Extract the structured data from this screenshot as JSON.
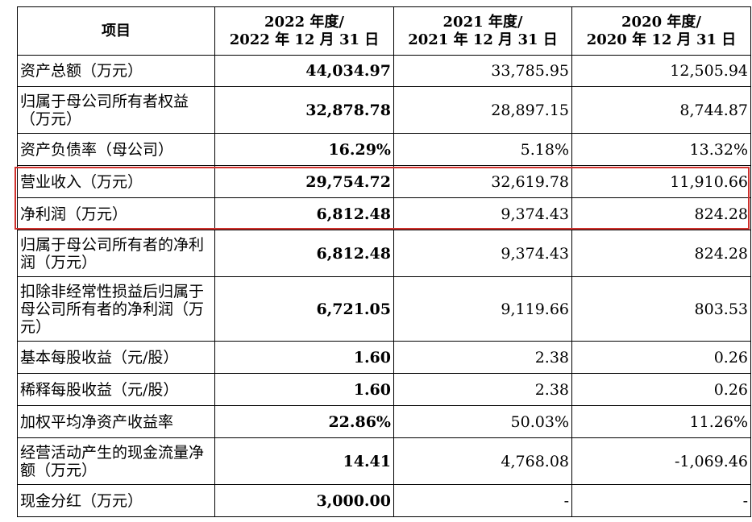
{
  "table": {
    "headers": {
      "item": "项目",
      "col2022_line1": "2022 年度/",
      "col2022_line2": "2022 年 12 月 31 日",
      "col2021_line1": "2021 年度/",
      "col2021_line2": "2021 年 12 月 31 日",
      "col2020_line1": "2020 年度/",
      "col2020_line2": "2020 年 12 月 31 日"
    },
    "rows": [
      {
        "label": "资产总额（万元）",
        "v2022": "44,034.97",
        "v2021": "33,785.95",
        "v2020": "12,505.94"
      },
      {
        "label": "归属于母公司所有者权益（万元）",
        "v2022": "32,878.78",
        "v2021": "28,897.15",
        "v2020": "8,744.87"
      },
      {
        "label": "资产负债率（母公司）",
        "v2022": "16.29%",
        "v2021": "5.18%",
        "v2020": "13.32%"
      },
      {
        "label": "营业收入（万元）",
        "v2022": "29,754.72",
        "v2021": "32,619.78",
        "v2020": "11,910.66"
      },
      {
        "label": "净利润（万元）",
        "v2022": "6,812.48",
        "v2021": "9,374.43",
        "v2020": "824.28"
      },
      {
        "label": "归属于母公司所有者的净利润（万元）",
        "v2022": "6,812.48",
        "v2021": "9,374.43",
        "v2020": "824.28"
      },
      {
        "label": "扣除非经常性损益后归属于母公司所有者的净利润（万元）",
        "v2022": "6,721.05",
        "v2021": "9,119.66",
        "v2020": "803.53"
      },
      {
        "label": "基本每股收益（元/股）",
        "v2022": "1.60",
        "v2021": "2.38",
        "v2020": "0.26"
      },
      {
        "label": "稀释每股收益（元/股）",
        "v2022": "1.60",
        "v2021": "2.38",
        "v2020": "0.26"
      },
      {
        "label": "加权平均净资产收益率",
        "v2022": "22.86%",
        "v2021": "50.03%",
        "v2020": "11.26%"
      },
      {
        "label": "经营活动产生的现金流量净额（万元）",
        "v2022": "14.41",
        "v2021": "4,768.08",
        "v2020": "-1,069.46"
      },
      {
        "label": "现金分红（万元）",
        "v2022": "3,000.00",
        "v2021": "-",
        "v2020": "-"
      }
    ]
  },
  "highlight": {
    "color": "#d0312d"
  }
}
